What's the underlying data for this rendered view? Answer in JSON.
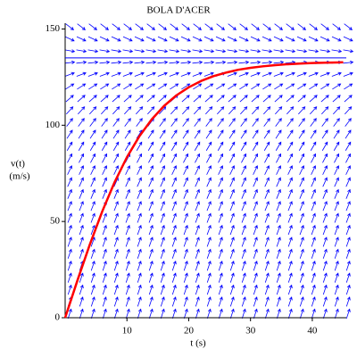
{
  "chart_data": {
    "type": "line",
    "title": "BOLA D'ACER",
    "xlabel": "t (s)",
    "ylabel": [
      "v(t)",
      "(m/s)"
    ],
    "x": [
      0,
      2,
      4,
      6,
      8,
      10,
      12,
      14,
      16,
      18,
      20,
      22,
      24,
      26,
      28,
      30,
      32,
      34,
      36,
      38,
      40,
      42,
      44,
      45
    ],
    "series": [
      {
        "name": "v(t)",
        "color": "#ff0000",
        "values": [
          0,
          19.5,
          38.1,
          55.2,
          70.4,
          83.4,
          94.2,
          103.0,
          110.0,
          115.5,
          119.7,
          123.0,
          125.5,
          127.3,
          128.8,
          129.8,
          130.6,
          131.2,
          131.7,
          132.0,
          132.3,
          132.5,
          132.6,
          132.7
        ]
      }
    ],
    "reference_line": 135,
    "field_color": "#0000ff",
    "xlim": [
      0,
      45.5
    ],
    "ylim": [
      0,
      153
    ],
    "xticks": [
      10,
      20,
      30,
      40
    ],
    "yticks": [
      0,
      50,
      100,
      150
    ]
  }
}
